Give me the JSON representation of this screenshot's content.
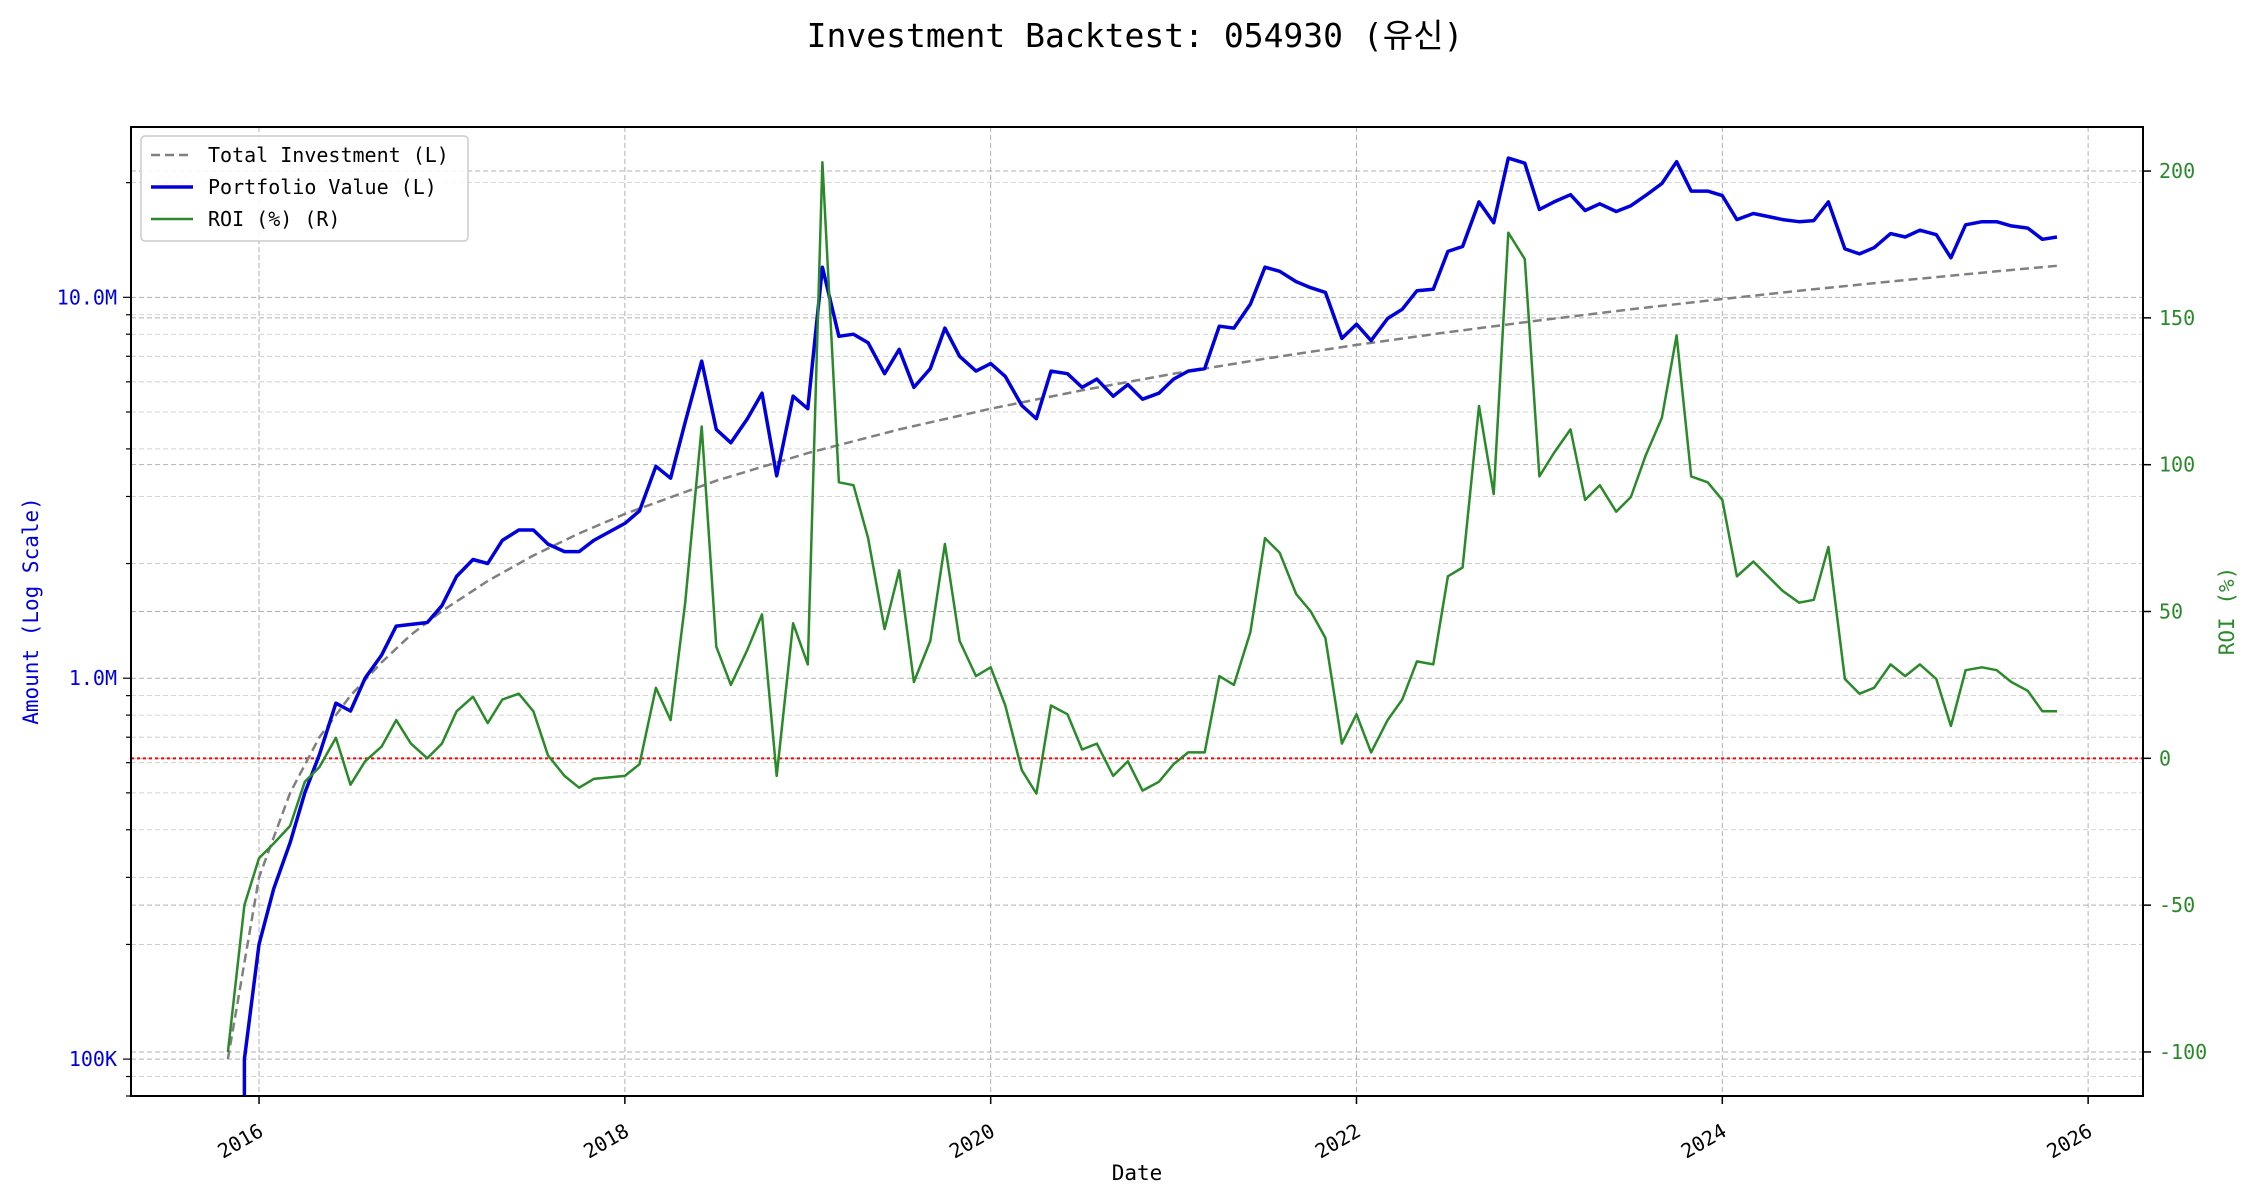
{
  "chart_data": {
    "type": "line",
    "title": "Investment Backtest: 054930 (유신)",
    "xlabel": "Date",
    "ylabel_left": "Amount (Log Scale)",
    "ylabel_right": "ROI (%)",
    "x_ticks": [
      "2016",
      "2018",
      "2020",
      "2022",
      "2024",
      "2026"
    ],
    "x_range": [
      2015.3,
      2026.3
    ],
    "y_left_scale": "log",
    "y_left_range": [
      80000,
      28000000
    ],
    "y_left_ticks": [
      {
        "value": 100000,
        "label": "100K"
      },
      {
        "value": 1000000,
        "label": "1.0M"
      },
      {
        "value": 10000000,
        "label": "10.0M"
      }
    ],
    "y_right_range": [
      -115,
      215
    ],
    "y_right_ticks": [
      -100,
      -50,
      0,
      50,
      100,
      150,
      200
    ],
    "grid": true,
    "legend_position": "top-left",
    "reference_line": {
      "value": 0,
      "axis": "right",
      "color": "#ff0000",
      "style": "dotted"
    },
    "series": [
      {
        "name": "Total Investment (L)",
        "axis": "left",
        "color": "#808080",
        "style": "dashed",
        "x": [
          2015.83,
          2016.0,
          2016.17,
          2016.33,
          2016.5,
          2016.67,
          2016.83,
          2017.0,
          2017.25,
          2017.5,
          2017.75,
          2018.0,
          2018.5,
          2019.0,
          2019.5,
          2020.0,
          2020.5,
          2021.0,
          2021.5,
          2022.0,
          2022.5,
          2023.0,
          2023.5,
          2024.0,
          2024.5,
          2025.0,
          2025.5,
          2025.83
        ],
        "values": [
          100000,
          300000,
          500000,
          700000,
          900000,
          1100000,
          1300000,
          1500000,
          1800000,
          2100000,
          2400000,
          2700000,
          3300000,
          3900000,
          4500000,
          5100000,
          5700000,
          6300000,
          6900000,
          7500000,
          8100000,
          8700000,
          9300000,
          9900000,
          10500000,
          11100000,
          11700000,
          12100000
        ]
      },
      {
        "name": "Portfolio Value (L)",
        "axis": "left",
        "color": "#0000dd",
        "style": "solid",
        "x": [
          2015.92,
          2015.92,
          2016.0,
          2016.08,
          2016.17,
          2016.25,
          2016.33,
          2016.42,
          2016.5,
          2016.58,
          2016.67,
          2016.75,
          2016.92,
          2017.0,
          2017.08,
          2017.17,
          2017.25,
          2017.33,
          2017.42,
          2017.5,
          2017.58,
          2017.67,
          2017.75,
          2017.83,
          2018.0,
          2018.08,
          2018.17,
          2018.25,
          2018.33,
          2018.42,
          2018.5,
          2018.58,
          2018.67,
          2018.75,
          2018.83,
          2018.92,
          2019.0,
          2019.08,
          2019.17,
          2019.25,
          2019.33,
          2019.42,
          2019.5,
          2019.58,
          2019.67,
          2019.75,
          2019.83,
          2019.92,
          2020.0,
          2020.08,
          2020.17,
          2020.25,
          2020.33,
          2020.42,
          2020.5,
          2020.58,
          2020.67,
          2020.75,
          2020.83,
          2020.92,
          2021.0,
          2021.08,
          2021.17,
          2021.25,
          2021.33,
          2021.42,
          2021.5,
          2021.58,
          2021.67,
          2021.75,
          2021.83,
          2021.92,
          2022.0,
          2022.08,
          2022.17,
          2022.25,
          2022.33,
          2022.42,
          2022.5,
          2022.58,
          2022.67,
          2022.75,
          2022.83,
          2022.92,
          2023.0,
          2023.08,
          2023.17,
          2023.25,
          2023.33,
          2023.42,
          2023.5,
          2023.58,
          2023.67,
          2023.75,
          2023.83,
          2023.92,
          2024.0,
          2024.08,
          2024.17,
          2024.25,
          2024.33,
          2024.42,
          2024.5,
          2024.58,
          2024.67,
          2024.75,
          2024.83,
          2024.92,
          2025.0,
          2025.08,
          2025.17,
          2025.25,
          2025.33,
          2025.42,
          2025.5,
          2025.58,
          2025.67,
          2025.75,
          2025.83
        ],
        "values": [
          75000,
          100000,
          200000,
          280000,
          370000,
          500000,
          630000,
          860000,
          820000,
          1000000,
          1150000,
          1370000,
          1400000,
          1550000,
          1850000,
          2050000,
          2000000,
          2300000,
          2450000,
          2450000,
          2250000,
          2150000,
          2150000,
          2300000,
          2550000,
          2750000,
          3600000,
          3350000,
          4700000,
          6800000,
          4500000,
          4150000,
          4800000,
          5600000,
          3400000,
          5500000,
          5100000,
          12000000,
          7900000,
          8000000,
          7600000,
          6300000,
          7300000,
          5800000,
          6500000,
          8300000,
          7000000,
          6400000,
          6700000,
          6200000,
          5200000,
          4800000,
          6400000,
          6300000,
          5800000,
          6100000,
          5500000,
          5900000,
          5400000,
          5600000,
          6100000,
          6400000,
          6500000,
          8400000,
          8300000,
          9600000,
          12000000,
          11700000,
          11000000,
          10600000,
          10300000,
          7800000,
          8500000,
          7700000,
          8800000,
          9300000,
          10400000,
          10500000,
          13200000,
          13600000,
          17800000,
          15700000,
          23200000,
          22500000,
          17000000,
          17800000,
          18600000,
          16900000,
          17600000,
          16800000,
          17400000,
          18500000,
          19900000,
          22700000,
          19000000,
          19000000,
          18500000,
          16000000,
          16600000,
          16300000,
          16000000,
          15800000,
          15900000,
          17800000,
          13400000,
          13000000,
          13500000,
          14700000,
          14400000,
          15000000,
          14600000,
          12700000,
          15500000,
          15800000,
          15800000,
          15400000,
          15200000,
          14200000,
          14400000
        ]
      },
      {
        "name": "ROI (%) (R)",
        "axis": "right",
        "color": "#2a8a2a",
        "style": "solid",
        "x": [
          2015.83,
          2015.92,
          2016.0,
          2016.08,
          2016.17,
          2016.25,
          2016.33,
          2016.42,
          2016.5,
          2016.58,
          2016.67,
          2016.75,
          2016.83,
          2016.92,
          2017.0,
          2017.08,
          2017.17,
          2017.25,
          2017.33,
          2017.42,
          2017.5,
          2017.58,
          2017.67,
          2017.75,
          2017.83,
          2018.0,
          2018.08,
          2018.17,
          2018.25,
          2018.33,
          2018.42,
          2018.5,
          2018.58,
          2018.67,
          2018.75,
          2018.83,
          2018.92,
          2019.0,
          2019.08,
          2019.17,
          2019.25,
          2019.33,
          2019.42,
          2019.5,
          2019.58,
          2019.67,
          2019.75,
          2019.83,
          2019.92,
          2020.0,
          2020.08,
          2020.17,
          2020.25,
          2020.33,
          2020.42,
          2020.5,
          2020.58,
          2020.67,
          2020.75,
          2020.83,
          2020.92,
          2021.0,
          2021.08,
          2021.17,
          2021.25,
          2021.33,
          2021.42,
          2021.5,
          2021.58,
          2021.67,
          2021.75,
          2021.83,
          2021.92,
          2022.0,
          2022.08,
          2022.17,
          2022.25,
          2022.33,
          2022.42,
          2022.5,
          2022.58,
          2022.67,
          2022.75,
          2022.83,
          2022.92,
          2023.0,
          2023.08,
          2023.17,
          2023.25,
          2023.33,
          2023.42,
          2023.5,
          2023.58,
          2023.67,
          2023.75,
          2023.83,
          2023.92,
          2024.0,
          2024.08,
          2024.17,
          2024.25,
          2024.33,
          2024.42,
          2024.5,
          2024.58,
          2024.67,
          2024.75,
          2024.83,
          2024.92,
          2025.0,
          2025.08,
          2025.17,
          2025.25,
          2025.33,
          2025.42,
          2025.5,
          2025.58,
          2025.67,
          2025.75,
          2025.83
        ],
        "values": [
          -100,
          -50,
          -34,
          -29,
          -23,
          -8,
          -3,
          7,
          -9,
          -1,
          4,
          13,
          5,
          0,
          5,
          16,
          21,
          12,
          20,
          22,
          16,
          1,
          -6,
          -10,
          -7,
          -6,
          -2,
          24,
          13,
          53,
          113,
          38,
          25,
          37,
          49,
          -6,
          46,
          32,
          203,
          94,
          93,
          75,
          44,
          64,
          26,
          40,
          73,
          40,
          28,
          31,
          18,
          -4,
          -12,
          18,
          15,
          3,
          5,
          -6,
          -1,
          -11,
          -8,
          -2,
          2,
          2,
          28,
          25,
          43,
          75,
          70,
          56,
          50,
          41,
          5,
          15,
          2,
          13,
          20,
          33,
          32,
          62,
          65,
          120,
          90,
          179,
          170,
          96,
          104,
          112,
          88,
          93,
          84,
          89,
          103,
          116,
          144,
          96,
          94,
          88,
          62,
          67,
          62,
          57,
          53,
          54,
          72,
          27,
          22,
          24,
          32,
          28,
          32,
          27,
          11,
          30,
          31,
          30,
          26,
          23,
          16,
          16
        ]
      }
    ]
  }
}
